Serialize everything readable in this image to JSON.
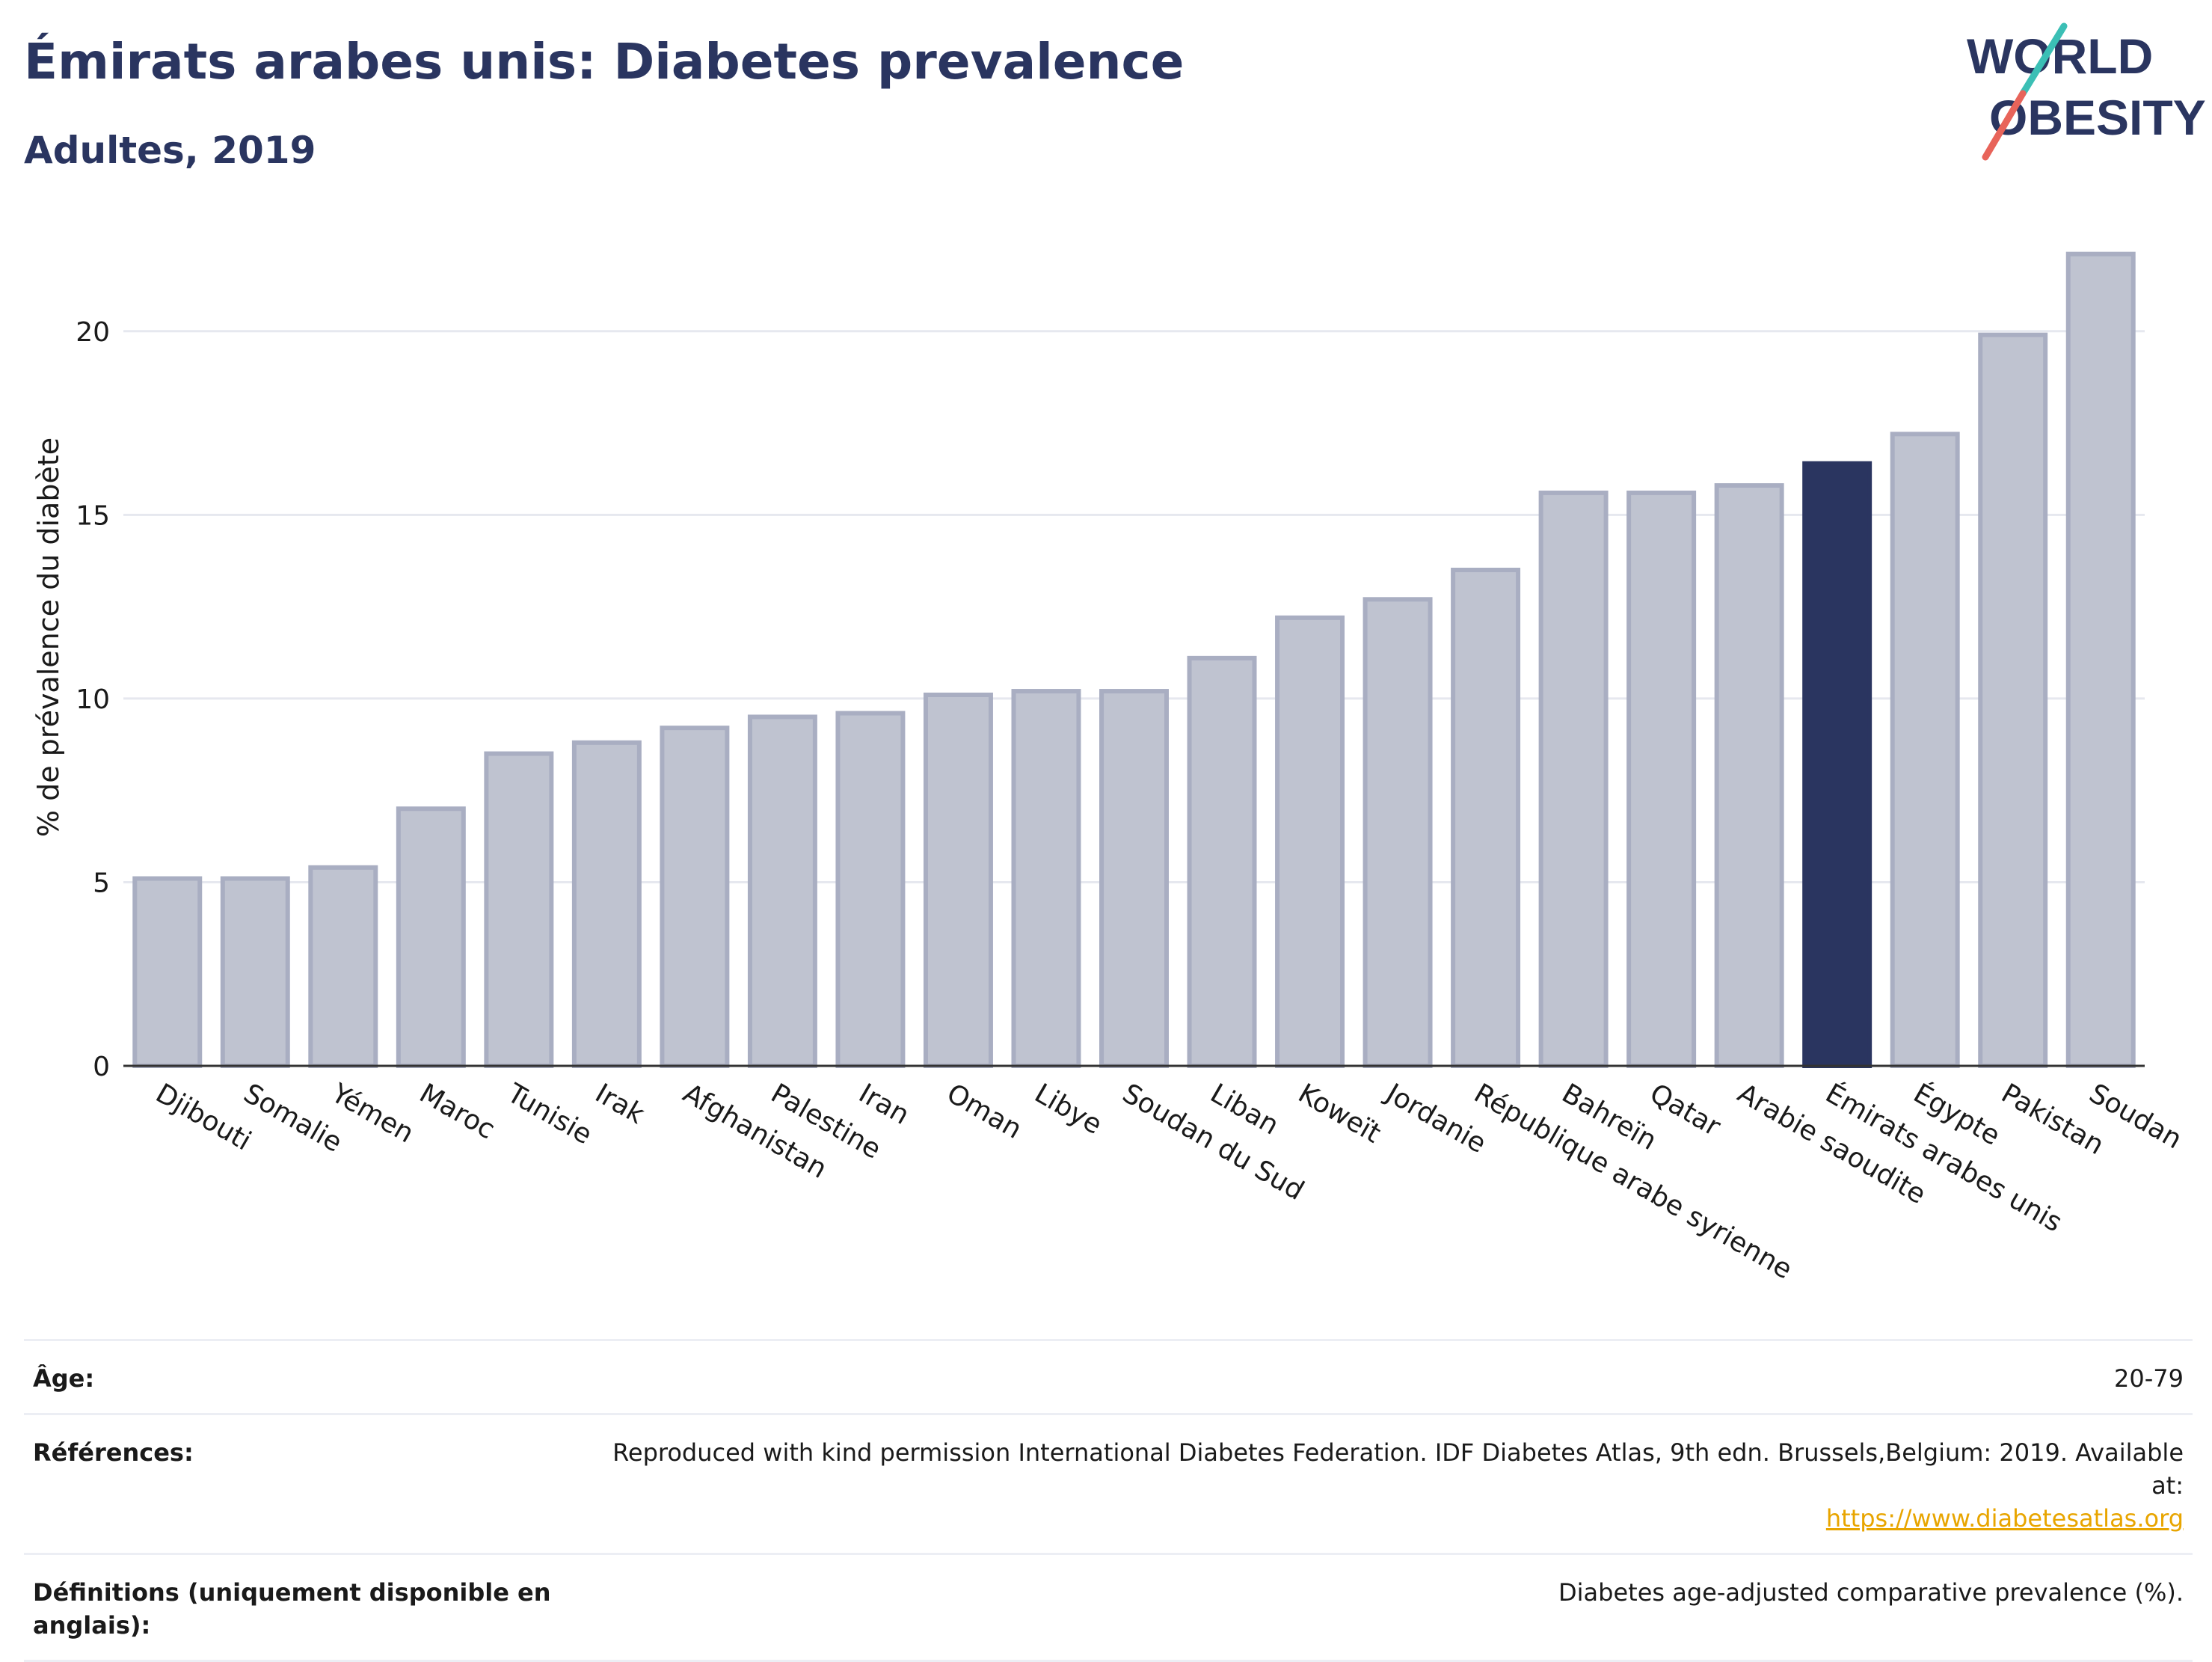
{
  "header": {
    "title": "Émirats arabes unis: Diabetes prevalence",
    "subtitle": "Adultes, 2019"
  },
  "logo": {
    "line1": "WORLD",
    "line2": "OBESITY"
  },
  "chart_data": {
    "type": "bar",
    "ylabel": "% de prévalence du diabète",
    "xlabel": "",
    "ylim": [
      0,
      22.5
    ],
    "yticks": [
      0,
      5,
      10,
      15,
      20
    ],
    "grid": true,
    "categories": [
      "Djibouti",
      "Somalie",
      "Yémen",
      "Maroc",
      "Tunisie",
      "Irak",
      "Afghanistan",
      "Palestine",
      "Iran",
      "Oman",
      "Libye",
      "Soudan du Sud",
      "Liban",
      "Koweït",
      "Jordanie",
      "République arabe syrienne",
      "Bahreïn",
      "Qatar",
      "Arabie saoudite",
      "Émirats arabes unis",
      "Égypte",
      "Pakistan",
      "Soudan"
    ],
    "values": [
      5.1,
      5.1,
      5.4,
      7.0,
      8.5,
      8.8,
      9.2,
      9.5,
      9.6,
      10.1,
      10.2,
      10.2,
      11.1,
      12.2,
      12.7,
      13.5,
      15.6,
      15.6,
      15.8,
      16.4,
      17.2,
      19.9,
      22.1
    ],
    "highlight": "Émirats arabes unis",
    "colors": {
      "bar_fill": "#bfc3d0",
      "bar_stroke": "#a9aec2",
      "highlight_fill": "#2a3560",
      "axis": "#333333",
      "grid": "#e6e8ef"
    }
  },
  "info": {
    "age_label": "Âge:",
    "age_value": "20-79",
    "references_label": "Références:",
    "references_value": "Reproduced with kind permission International Diabetes Federation. IDF Diabetes Atlas, 9th edn. Brussels,Belgium: 2019. Available at:",
    "references_link": "https://www.diabetesatlas.org",
    "definitions_label": "Définitions (uniquement disponible en anglais):",
    "definitions_value": "Diabetes age-adjusted comparative prevalence (%)."
  }
}
